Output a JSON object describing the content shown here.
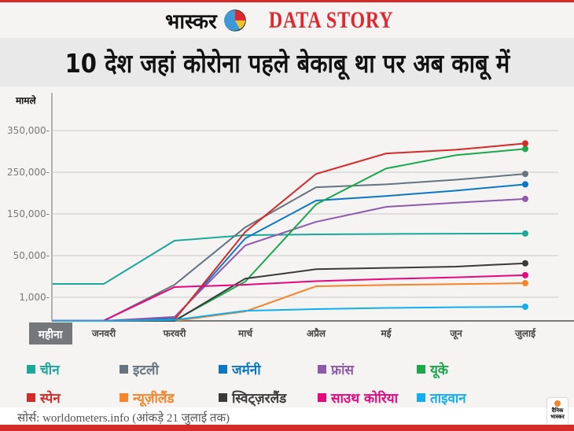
{
  "header": {
    "brand": "भास्कर",
    "section": "DATA STORY",
    "title": "10 देश जहां कोरोना पहले बेकाबू था पर अब काबू में"
  },
  "footer": {
    "source": "सोर्स: worldometers.info  (आंकड़े 21 जुलाई तक)",
    "badge": "दैनिक भास्कर"
  },
  "chart_data": {
    "type": "line",
    "title": "10 देश जहां कोरोना पहले बेकाबू था पर अब काबू में",
    "ylabel": "मामले",
    "xlabel": "महीना",
    "categories": [
      "जनवरी",
      "फरवरी",
      "मार्च",
      "अप्रैल",
      "मई",
      "जून",
      "जुलाई"
    ],
    "yticks": [
      0,
      1000,
      50000,
      150000,
      250000,
      350000
    ],
    "ytick_labels": [
      "1,000-",
      "50,000-",
      "150,000-",
      "250,000-",
      "350,000-"
    ],
    "yscale": "non-linear (evenly spaced ticks)",
    "grid": true,
    "legend": "bottom",
    "series": [
      {
        "name": "चीन",
        "color": "#1aa89a",
        "values": [
          16700,
          85800,
          99000,
          101000,
          102000,
          102500,
          103000
        ]
      },
      {
        "name": "इटली",
        "color": "#65747e",
        "values": [
          0,
          15800,
          118000,
          214000,
          221000,
          232000,
          246000
        ]
      },
      {
        "name": "जर्मनी",
        "color": "#0a77c7",
        "values": [
          0,
          100,
          91500,
          182000,
          193000,
          206000,
          221000
        ]
      },
      {
        "name": "फ्रांस",
        "color": "#8e5aab",
        "values": [
          0,
          170,
          74500,
          131000,
          167000,
          177000,
          186000
        ]
      },
      {
        "name": "यूके",
        "color": "#1aa84b",
        "values": [
          0,
          20,
          19500,
          173000,
          259000,
          291000,
          306000
        ]
      },
      {
        "name": "स्पेन",
        "color": "#d42a28",
        "values": [
          0,
          50,
          107000,
          246000,
          295000,
          304000,
          319000
        ]
      },
      {
        "name": "न्यूज़ीलैंड",
        "color": "#f5842a",
        "values": [
          0,
          0,
          400,
          14000,
          15500,
          16500,
          17600
        ]
      },
      {
        "name": "स्विट्ज़रलैंड",
        "color": "#3a3a3a",
        "values": [
          0,
          0,
          23000,
          34000,
          35500,
          37000,
          41000
        ]
      },
      {
        "name": "साउथ कोरिया",
        "color": "#e6077f",
        "values": [
          11,
          13000,
          15800,
          20000,
          22500,
          24500,
          27000
        ]
      },
      {
        "name": "ताइवान",
        "color": "#12aef0",
        "values": [
          0,
          40,
          430,
          500,
          550,
          580,
          600
        ]
      }
    ]
  }
}
